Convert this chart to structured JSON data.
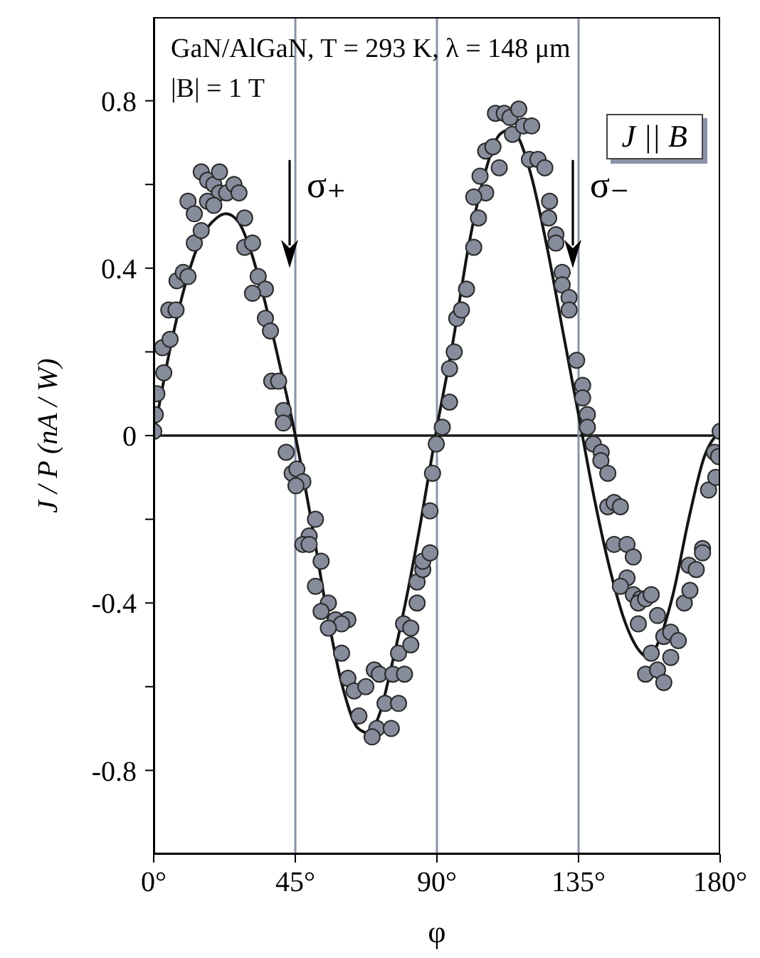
{
  "chart_data": {
    "type": "scatter",
    "title": "GaN/AlGaN, T = 293 K, λ = 148 μm",
    "subtitle": "|B| = 1 T",
    "xlabel": "φ",
    "ylabel": "J / P  (nA / W)",
    "annotations": [
      "σ₊",
      "σ₋",
      "J || B"
    ],
    "xlim": [
      0,
      180
    ],
    "xticks": [
      {
        "value": 0,
        "label": "0°"
      },
      {
        "value": 45,
        "label": "45°"
      },
      {
        "value": 90,
        "label": "90°"
      },
      {
        "value": 135,
        "label": "135°"
      },
      {
        "value": 180,
        "label": "180°"
      }
    ],
    "ylim": [
      -1.0,
      1.0
    ],
    "yticks": [
      -0.8,
      {
        "value": -0.6,
        "label": null
      },
      -0.4,
      {
        "value": -0.2,
        "label": null
      },
      0,
      {
        "value": 0.2,
        "label": null
      },
      0.4,
      {
        "value": 0.6,
        "label": null
      },
      0.8
    ],
    "marker": "circle",
    "ref_lines": [
      {
        "axis": "y",
        "value": 0,
        "label": null,
        "color": "#1a1a1a"
      },
      {
        "axis": "x",
        "value": 45,
        "label": null,
        "color": "#8a93a8"
      },
      {
        "axis": "x",
        "value": 90,
        "label": null,
        "color": "#8a93a8"
      },
      {
        "axis": "x",
        "value": 135,
        "label": null,
        "color": "#8a93a8"
      }
    ],
    "series": [
      {
        "color": "#878c9c",
        "x": [
          0,
          0.5,
          1,
          3.2,
          2.8,
          5.2,
          4.8,
          7.1,
          7.4,
          9.4,
          10.9,
          12.9,
          15.1,
          10.9,
          12.9,
          15.1,
          17.1,
          19.1,
          20.9,
          20.9,
          23.2,
          25.5,
          27.1,
          17.1,
          19.1,
          28.9,
          28.9,
          31.4,
          33.2,
          35.5,
          31.4,
          35.5,
          37.1,
          37.5,
          39.7,
          41.2,
          41.2,
          42.1,
          44,
          45.5,
          47.4,
          45.2,
          51.4,
          49.4,
          47.4,
          49.4,
          53.2,
          51.4,
          55.5,
          53.2,
          57.8,
          61.7,
          59.7,
          55.5,
          59.7,
          61.7,
          63.7,
          67.4,
          70.1,
          71.7,
          76,
          79.7,
          65.2,
          73.5,
          77.8,
          70.9,
          75.5,
          69.4,
          77.8,
          81.7,
          79.4,
          81.7,
          83.7,
          83.7,
          85.5,
          85.5,
          87.8,
          87.8,
          88.6,
          89.8,
          91.7,
          94,
          94,
          95.5,
          96.3,
          97.8,
          99.4,
          101.7,
          103.2,
          105.5,
          101.7,
          103.7,
          105.5,
          107.8,
          109.8,
          108.6,
          111.4,
          113.2,
          116,
          114,
          117.5,
          120.1,
          119.4,
          122.1,
          124.3,
          125.8,
          125.5,
          127.8,
          127.8,
          129.8,
          129.8,
          132,
          132,
          134.4,
          136.3,
          136.3,
          137.8,
          137.8,
          139.7,
          142.2,
          142.1,
          144.3,
          144.3,
          146.3,
          148.3,
          146.3,
          150.4,
          152.4,
          150.4,
          148.3,
          152.4,
          154.7,
          154,
          156.3,
          158.1,
          154,
          160.1,
          158.1,
          156.3,
          160.1,
          162.1,
          164.3,
          162.1,
          164.3,
          166.7,
          168.6,
          170.4,
          170.1,
          172.4,
          174.4,
          174.4,
          176.3,
          178.6,
          178.2,
          179.5,
          180
        ],
        "values": [
          0.01,
          0.05,
          0.1,
          0.15,
          0.21,
          0.23,
          0.3,
          0.3,
          0.37,
          0.39,
          0.38,
          0.46,
          0.49,
          0.56,
          0.53,
          0.63,
          0.61,
          0.6,
          0.63,
          0.58,
          0.58,
          0.6,
          0.58,
          0.56,
          0.55,
          0.52,
          0.45,
          0.46,
          0.38,
          0.35,
          0.34,
          0.28,
          0.25,
          0.13,
          0.13,
          0.06,
          0.03,
          -0.04,
          -0.09,
          -0.08,
          -0.11,
          -0.12,
          -0.2,
          -0.24,
          -0.26,
          -0.26,
          -0.3,
          -0.36,
          -0.4,
          -0.42,
          -0.44,
          -0.44,
          -0.45,
          -0.46,
          -0.52,
          -0.58,
          -0.61,
          -0.6,
          -0.56,
          -0.57,
          -0.57,
          -0.57,
          -0.67,
          -0.64,
          -0.64,
          -0.7,
          -0.7,
          -0.72,
          -0.52,
          -0.5,
          -0.45,
          -0.46,
          -0.4,
          -0.35,
          -0.32,
          -0.3,
          -0.28,
          -0.18,
          -0.09,
          -0.02,
          0.02,
          0.08,
          0.16,
          0.2,
          0.28,
          0.3,
          0.35,
          0.45,
          0.52,
          0.58,
          0.57,
          0.62,
          0.68,
          0.69,
          0.64,
          0.77,
          0.77,
          0.76,
          0.78,
          0.72,
          0.74,
          0.74,
          0.66,
          0.66,
          0.64,
          0.56,
          0.52,
          0.48,
          0.46,
          0.39,
          0.36,
          0.33,
          0.3,
          0.18,
          0.12,
          0.09,
          0.05,
          0.02,
          -0.02,
          -0.04,
          -0.06,
          -0.09,
          -0.17,
          -0.16,
          -0.17,
          -0.26,
          -0.26,
          -0.29,
          -0.34,
          -0.36,
          -0.38,
          -0.39,
          -0.4,
          -0.39,
          -0.38,
          -0.45,
          -0.43,
          -0.52,
          -0.57,
          -0.56,
          -0.59,
          -0.53,
          -0.48,
          -0.47,
          -0.49,
          -0.4,
          -0.37,
          -0.31,
          -0.32,
          -0.27,
          -0.28,
          -0.13,
          -0.1,
          -0.04,
          -0.05,
          0.01
        ]
      },
      {
        "type": "line",
        "color": "#141414",
        "marker": "none",
        "x": [
          0,
          5,
          10,
          15,
          20,
          23,
          27,
          30,
          35,
          40,
          45,
          50,
          55,
          60,
          65,
          68,
          72,
          75,
          80,
          85,
          90,
          95,
          100,
          105,
          110,
          113,
          116,
          120,
          125,
          130,
          135,
          140,
          145,
          150,
          155,
          157,
          160,
          165,
          170,
          175,
          180
        ],
        "values": [
          0,
          0.2,
          0.36,
          0.47,
          0.52,
          0.53,
          0.51,
          0.46,
          0.33,
          0.17,
          0,
          -0.2,
          -0.42,
          -0.6,
          -0.7,
          -0.71,
          -0.66,
          -0.57,
          -0.4,
          -0.2,
          0.02,
          0.22,
          0.45,
          0.62,
          0.72,
          0.73,
          0.71,
          0.62,
          0.45,
          0.25,
          0.05,
          -0.15,
          -0.32,
          -0.45,
          -0.52,
          -0.53,
          -0.5,
          -0.38,
          -0.2,
          -0.05,
          0.01
        ]
      }
    ]
  }
}
